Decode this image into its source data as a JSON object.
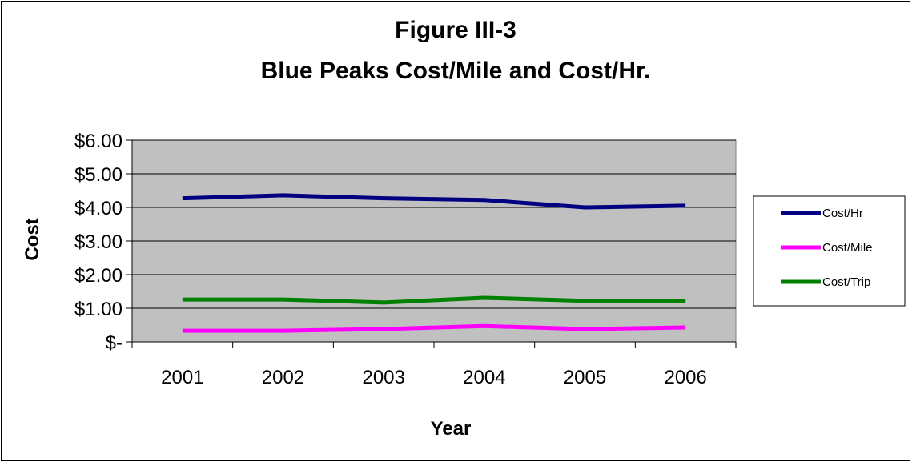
{
  "chart_data": {
    "type": "line",
    "title": "Figure III-3",
    "subtitle": "Blue Peaks Cost/Mile and Cost/Hr.",
    "xlabel": "Year",
    "ylabel": "Cost",
    "categories": [
      "2001",
      "2002",
      "2003",
      "2004",
      "2005",
      "2006"
    ],
    "ylim": [
      0,
      6
    ],
    "yticks": [
      {
        "value": 6,
        "label": "$6.00"
      },
      {
        "value": 5,
        "label": "$5.00"
      },
      {
        "value": 4,
        "label": "$4.00"
      },
      {
        "value": 3,
        "label": "$3.00"
      },
      {
        "value": 2,
        "label": "$2.00"
      },
      {
        "value": 1,
        "label": "$1.00"
      },
      {
        "value": 0,
        "label": "$-"
      }
    ],
    "grid": true,
    "legend_position": "right",
    "plot_background": "#c0c0c0",
    "series": [
      {
        "name": "Cost/Hr",
        "color": "#000080",
        "values": [
          4.27,
          4.36,
          4.27,
          4.22,
          4.0,
          4.05
        ]
      },
      {
        "name": "Cost/Mile",
        "color": "#ff00ff",
        "values": [
          0.33,
          0.33,
          0.38,
          0.47,
          0.38,
          0.43
        ]
      },
      {
        "name": "Cost/Trip",
        "color": "#008000",
        "values": [
          1.26,
          1.26,
          1.17,
          1.31,
          1.22,
          1.22
        ]
      }
    ]
  }
}
